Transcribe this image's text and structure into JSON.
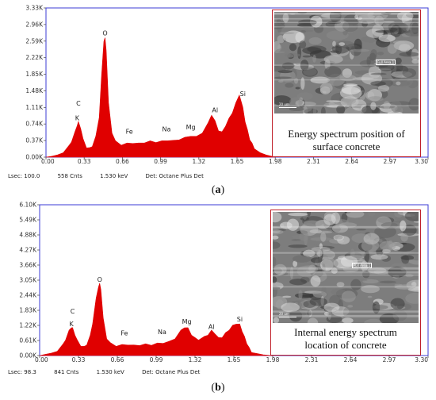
{
  "chart_data": [
    {
      "type": "area",
      "panel": "(a)",
      "xlim": [
        0.0,
        3.3
      ],
      "ylim": [
        0,
        3.33
      ],
      "x_ticks": [
        "0.00",
        "0.33",
        "0.66",
        "0.99",
        "1.32",
        "1.65",
        "1.98",
        "2.31",
        "2.64",
        "2.97",
        "3.30"
      ],
      "y_ticks": [
        "0.00K",
        "0.37K",
        "0.74K",
        "1.11K",
        "1.48K",
        "1.85K",
        "2.22K",
        "2.59K",
        "2.96K",
        "3.33K"
      ],
      "series_color": "#e00000",
      "spectrum_x": [
        0.0,
        0.05,
        0.1,
        0.15,
        0.2,
        0.22,
        0.25,
        0.27,
        0.28,
        0.3,
        0.32,
        0.35,
        0.38,
        0.4,
        0.43,
        0.46,
        0.48,
        0.5,
        0.51,
        0.52,
        0.54,
        0.57,
        0.6,
        0.65,
        0.7,
        0.75,
        0.8,
        0.85,
        0.9,
        0.95,
        1.0,
        1.05,
        1.1,
        1.15,
        1.2,
        1.25,
        1.3,
        1.35,
        1.4,
        1.43,
        1.46,
        1.49,
        1.52,
        1.55,
        1.58,
        1.61,
        1.64,
        1.67,
        1.7,
        1.72,
        1.74,
        1.76,
        1.78,
        1.8,
        1.85,
        1.9,
        1.98
      ],
      "spectrum_y": [
        0.0,
        0.02,
        0.05,
        0.1,
        0.25,
        0.35,
        0.55,
        0.72,
        0.78,
        0.65,
        0.4,
        0.22,
        0.2,
        0.25,
        0.45,
        0.9,
        1.8,
        2.6,
        2.65,
        2.4,
        1.2,
        0.55,
        0.35,
        0.28,
        0.3,
        0.32,
        0.3,
        0.33,
        0.35,
        0.34,
        0.35,
        0.38,
        0.36,
        0.4,
        0.43,
        0.48,
        0.45,
        0.55,
        0.75,
        0.95,
        0.8,
        0.6,
        0.55,
        0.7,
        0.85,
        1.0,
        1.2,
        1.4,
        1.1,
        0.8,
        0.6,
        0.4,
        0.3,
        0.2,
        0.1,
        0.05,
        0.0
      ],
      "peak_labels": [
        {
          "label": "C",
          "x": 0.28,
          "y": 1.15
        },
        {
          "label": "K",
          "x": 0.27,
          "y": 0.82
        },
        {
          "label": "O",
          "x": 0.51,
          "y": 2.72
        },
        {
          "label": "Fe",
          "x": 0.72,
          "y": 0.52
        },
        {
          "label": "Na",
          "x": 1.04,
          "y": 0.58
        },
        {
          "label": "Mg",
          "x": 1.25,
          "y": 0.62
        },
        {
          "label": "Al",
          "x": 1.46,
          "y": 1.0
        },
        {
          "label": "Si",
          "x": 1.7,
          "y": 1.36
        }
      ],
      "footer": {
        "lsec": "Lsec: 100.0",
        "cnts": "558 Cnts",
        "kev": "1.530 keV",
        "det": "Det: Octane Plus Det"
      },
      "inset": {
        "line1": "Energy spectrum position of",
        "line2": "surface concrete",
        "area_label": "Full Area 1",
        "scale": "20 um"
      },
      "caption": {
        "open": "(",
        "letter": "a",
        "close": ")"
      }
    },
    {
      "type": "area",
      "panel": "(b)",
      "xlim": [
        0.0,
        3.3
      ],
      "ylim": [
        0,
        6.1
      ],
      "x_ticks": [
        "0.00",
        "0.33",
        "0.66",
        "0.99",
        "1.32",
        "1.65",
        "1.98",
        "2.31",
        "2.64",
        "2.97",
        "3.30"
      ],
      "y_ticks": [
        "0.00K",
        "0.61K",
        "1.22K",
        "1.83K",
        "2.44K",
        "3.05K",
        "3.66K",
        "4.27K",
        "4.88K",
        "5.49K",
        "6.10K"
      ],
      "series_color": "#e00000",
      "spectrum_x": [
        0.0,
        0.05,
        0.1,
        0.15,
        0.2,
        0.22,
        0.25,
        0.27,
        0.28,
        0.3,
        0.32,
        0.35,
        0.38,
        0.4,
        0.43,
        0.45,
        0.48,
        0.5,
        0.51,
        0.52,
        0.54,
        0.57,
        0.6,
        0.65,
        0.7,
        0.75,
        0.8,
        0.85,
        0.9,
        0.95,
        1.0,
        1.05,
        1.1,
        1.15,
        1.2,
        1.23,
        1.26,
        1.29,
        1.32,
        1.35,
        1.4,
        1.43,
        1.46,
        1.49,
        1.52,
        1.55,
        1.58,
        1.61,
        1.64,
        1.67,
        1.7,
        1.72,
        1.74,
        1.76,
        1.78,
        1.8,
        1.85,
        1.9,
        1.98
      ],
      "spectrum_y": [
        0.0,
        0.05,
        0.1,
        0.2,
        0.45,
        0.65,
        1.0,
        1.15,
        1.1,
        0.85,
        0.6,
        0.4,
        0.35,
        0.45,
        0.8,
        1.3,
        2.3,
        2.8,
        2.9,
        2.7,
        1.5,
        0.7,
        0.5,
        0.4,
        0.42,
        0.45,
        0.4,
        0.43,
        0.45,
        0.44,
        0.48,
        0.52,
        0.55,
        0.7,
        1.0,
        1.15,
        1.1,
        0.85,
        0.7,
        0.65,
        0.75,
        0.85,
        1.0,
        0.9,
        0.7,
        0.75,
        0.9,
        1.05,
        1.2,
        1.3,
        1.25,
        1.0,
        0.75,
        0.5,
        0.3,
        0.15,
        0.08,
        0.03,
        0.0
      ],
      "peak_labels": [
        {
          "label": "C",
          "x": 0.28,
          "y": 1.7
        },
        {
          "label": "K",
          "x": 0.27,
          "y": 1.18
        },
        {
          "label": "O",
          "x": 0.51,
          "y": 2.98
        },
        {
          "label": "Fe",
          "x": 0.72,
          "y": 0.82
        },
        {
          "label": "Na",
          "x": 1.04,
          "y": 0.86
        },
        {
          "label": "Mg",
          "x": 1.25,
          "y": 1.28
        },
        {
          "label": "Al",
          "x": 1.46,
          "y": 1.08
        },
        {
          "label": "Si",
          "x": 1.7,
          "y": 1.38
        }
      ],
      "footer": {
        "lsec": "Lsec: 98.3",
        "cnts": "841 Cnts",
        "kev": "1.530 keV",
        "det": "Det: Octane Plus Det"
      },
      "inset": {
        "line1": "Internal energy spectrum",
        "line2": "location of concrete",
        "area_label": "Full Area 1",
        "scale": "20 um"
      },
      "caption": {
        "open": "(",
        "letter": "b",
        "close": ")"
      }
    }
  ]
}
